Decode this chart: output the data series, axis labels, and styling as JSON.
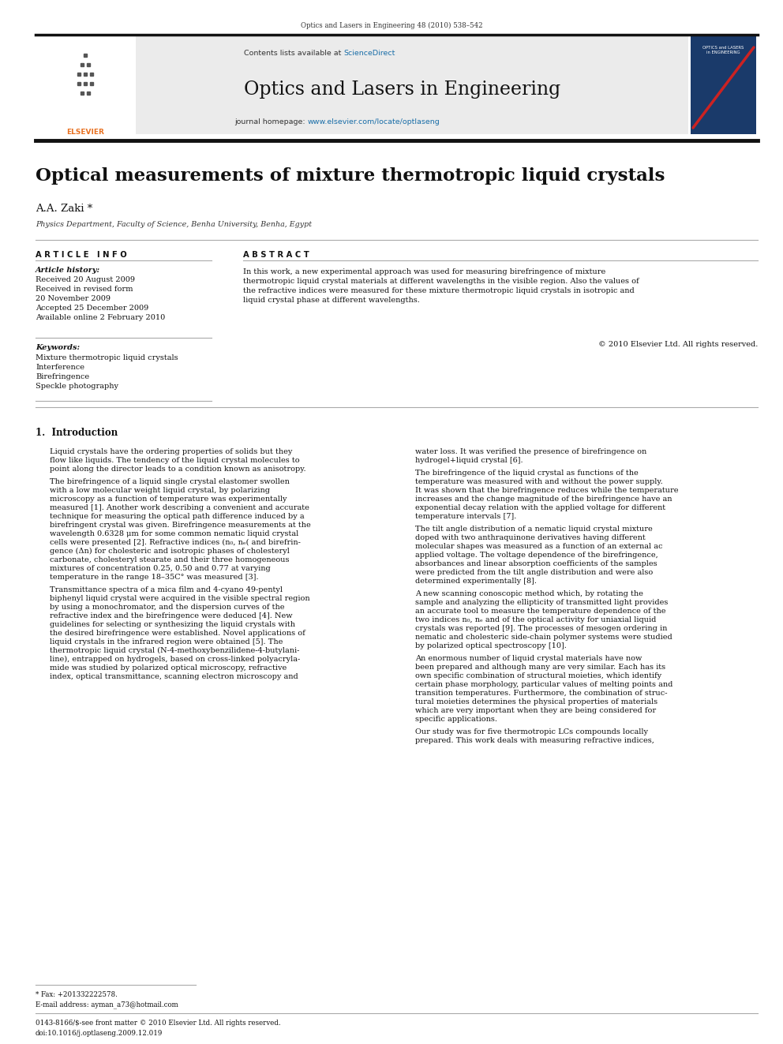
{
  "page_width": 9.92,
  "page_height": 13.23,
  "background_color": "#ffffff",
  "top_citation": "Optics and Lasers in Engineering 48 (2010) 538–542",
  "journal_header_bg": "#ebebeb",
  "contents_line_plain": "Contents lists available at ",
  "contents_line_link": "ScienceDirect",
  "sciencedirect_color": "#1a6ea8",
  "journal_title": "Optics and Lasers in Engineering",
  "homepage_plain": "journal homepage: ",
  "homepage_link": "www.elsevier.com/locate/optlaseng",
  "homepage_color": "#1a6ea8",
  "paper_title": "Optical measurements of mixture thermotropic liquid crystals",
  "author": "A.A. Zaki *",
  "affiliation": "Physics Department, Faculty of Science, Benha University, Benha, Egypt",
  "article_info_header": "A R T I C L E   I N F O",
  "abstract_header": "A B S T R A C T",
  "article_history_label": "Article history:",
  "history_lines": [
    "Received 20 August 2009",
    "Received in revised form",
    "20 November 2009",
    "Accepted 25 December 2009",
    "Available online 2 February 2010"
  ],
  "keywords_label": "Keywords:",
  "keywords": [
    "Mixture thermotropic liquid crystals",
    "Interference",
    "Birefringence",
    "Speckle photography"
  ],
  "abstract_lines": [
    "In this work, a new experimental approach was used for measuring birefringence of mixture",
    "thermotropic liquid crystal materials at different wavelengths in the visible region. Also the values of",
    "the refractive indices were measured for these mixture thermotropic liquid crystals in isotropic and",
    "liquid crystal phase at different wavelengths."
  ],
  "copyright_line": "© 2010 Elsevier Ltd. All rights reserved.",
  "section1_header": "1.  Introduction",
  "col1_p1": [
    "Liquid crystals have the ordering properties of solids but they",
    "flow like liquids. The tendency of the liquid crystal molecules to",
    "point along the director leads to a condition known as anisotropy."
  ],
  "col1_p2": [
    "The birefringence of a liquid single crystal elastomer swollen",
    "with a low molecular weight liquid crystal, by polarizing",
    "microscopy as a function of temperature was experimentally",
    "measured [1]. Another work describing a convenient and accurate",
    "technique for measuring the optical path difference induced by a",
    "birefringent crystal was given. Birefringence measurements at the",
    "wavelength 0.6328 μm for some common nematic liquid crystal",
    "cells were presented [2]. Refractive indices (n₀, nₑ( and birefrin-",
    "gence (Δn) for cholesteric and isotropic phases of cholesteryl",
    "carbonate, cholesteryl stearate and their three homogeneous",
    "mixtures of concentration 0.25, 0.50 and 0.77 at varying",
    "temperature in the range 18–35C° was measured [3]."
  ],
  "col1_p3": [
    "Transmittance spectra of a mica film and 4-cyano 49-pentyl",
    "biphenyl liquid crystal were acquired in the visible spectral region",
    "by using a monochromator, and the dispersion curves of the",
    "refractive index and the birefringence were deduced [4]. New",
    "guidelines for selecting or synthesizing the liquid crystals with",
    "the desired birefringence were established. Novel applications of",
    "liquid crystals in the infrared region were obtained [5]. The",
    "thermotropic liquid crystal (N-4-methoxybenzilidene-4-butylani-",
    "line), entrapped on hydrogels, based on cross-linked polyacryla-",
    "mide was studied by polarized optical microscopy, refractive",
    "index, optical transmittance, scanning electron microscopy and"
  ],
  "col2_p1": [
    "water loss. It was verified the presence of birefringence on",
    "hydrogel+liquid crystal [6]."
  ],
  "col2_p2": [
    "The birefringence of the liquid crystal as functions of the",
    "temperature was measured with and without the power supply.",
    "It was shown that the birefringence reduces while the temperature",
    "increases and the change magnitude of the birefringence have an",
    "exponential decay relation with the applied voltage for different",
    "temperature intervals [7]."
  ],
  "col2_p3": [
    "The tilt angle distribution of a nematic liquid crystal mixture",
    "doped with two anthraquinone derivatives having different",
    "molecular shapes was measured as a function of an external ac",
    "applied voltage. The voltage dependence of the birefringence,",
    "absorbances and linear absorption coefficients of the samples",
    "were predicted from the tilt angle distribution and were also",
    "determined experimentally [8]."
  ],
  "col2_p4": [
    "A new scanning conoscopic method which, by rotating the",
    "sample and analyzing the ellipticity of transmitted light provides",
    "an accurate tool to measure the temperature dependence of the",
    "two indices n₀, nₑ and of the optical activity for uniaxial liquid",
    "crystals was reported [9]. The processes of mesogen ordering in",
    "nematic and cholesteric side-chain polymer systems were studied",
    "by polarized optical spectroscopy [10]."
  ],
  "col2_p5": [
    "An enormous number of liquid crystal materials have now",
    "been prepared and although many are very similar. Each has its",
    "own specific combination of structural moieties, which identify",
    "certain phase morphology, particular values of melting points and",
    "transition temperatures. Furthermore, the combination of struc-",
    "tural moieties determines the physical properties of materials",
    "which are very important when they are being considered for",
    "specific applications."
  ],
  "col2_p6": [
    "Our study was for five thermotropic LCs compounds locally",
    "prepared. This work deals with measuring refractive indices,"
  ],
  "footnote_star": "* Fax: +201332222578.",
  "footnote_email": "E-mail address: ayman_a73@hotmail.com",
  "bottom_line1": "0143-8166/$-see front matter © 2010 Elsevier Ltd. All rights reserved.",
  "bottom_line2": "doi:10.1016/j.optlaseng.2009.12.019",
  "thick_bar_color": "#111111",
  "elsevier_orange": "#e87020",
  "cover_blue": "#1a3a6a"
}
